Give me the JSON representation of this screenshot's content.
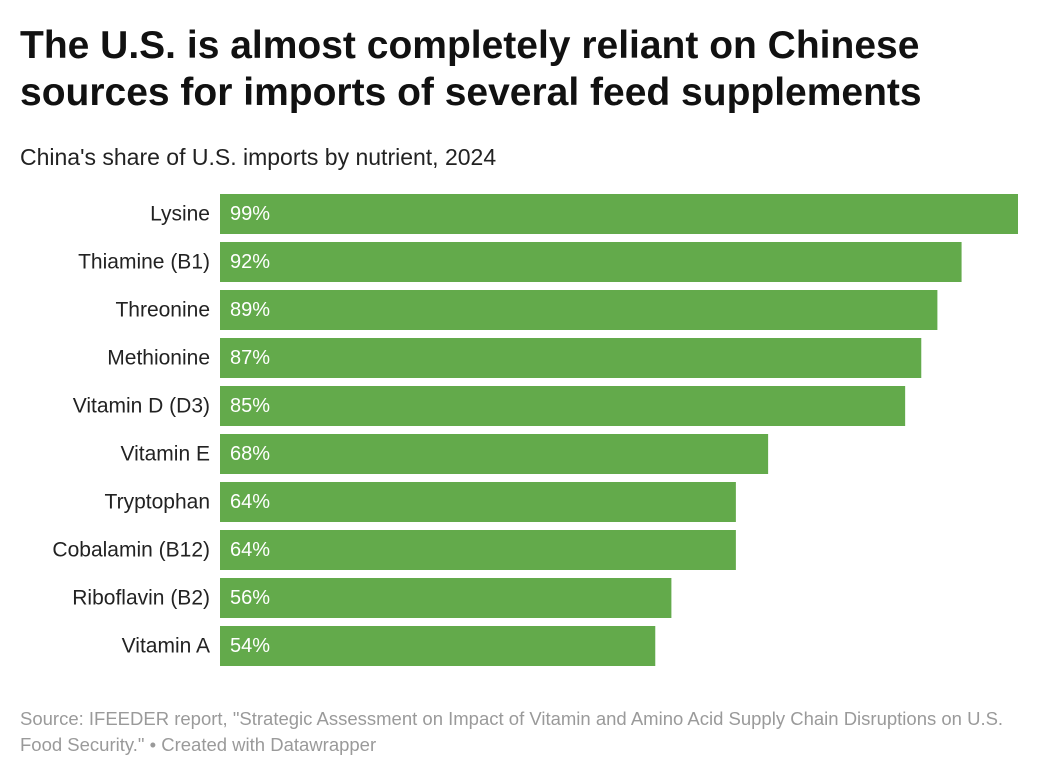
{
  "header": {
    "title": "The U.S. is almost completely reliant on Chinese sources for imports of several feed supplements",
    "subtitle": "China's share of U.S. imports by nutrient, 2024"
  },
  "footer": {
    "source": "Source: IFEEDER report, \"Strategic Assessment on Impact of Vitamin and Amino Acid Supply Chain Disruptions on U.S. Food Security.\" • Created with Datawrapper"
  },
  "colors": {
    "bar": "#63aa4b",
    "value_label": "#ffffff",
    "category_label": "#222222"
  },
  "chart_data": {
    "type": "bar",
    "orientation": "horizontal",
    "title": "The U.S. is almost completely reliant on Chinese sources for imports of several feed supplements",
    "subtitle": "China's share of U.S. imports by nutrient, 2024",
    "categories": [
      "Lysine",
      "Thiamine (B1)",
      "Threonine",
      "Methionine",
      "Vitamin D (D3)",
      "Vitamin E",
      "Tryptophan",
      "Cobalamin (B12)",
      "Riboflavin (B2)",
      "Vitamin A"
    ],
    "values": [
      99,
      92,
      89,
      87,
      85,
      68,
      64,
      64,
      56,
      54
    ],
    "value_labels": [
      "99%",
      "92%",
      "89%",
      "87%",
      "85%",
      "68%",
      "64%",
      "64%",
      "56%",
      "54%"
    ],
    "unit": "%",
    "xlim": [
      0,
      99
    ],
    "grid": false,
    "legend": "none"
  }
}
